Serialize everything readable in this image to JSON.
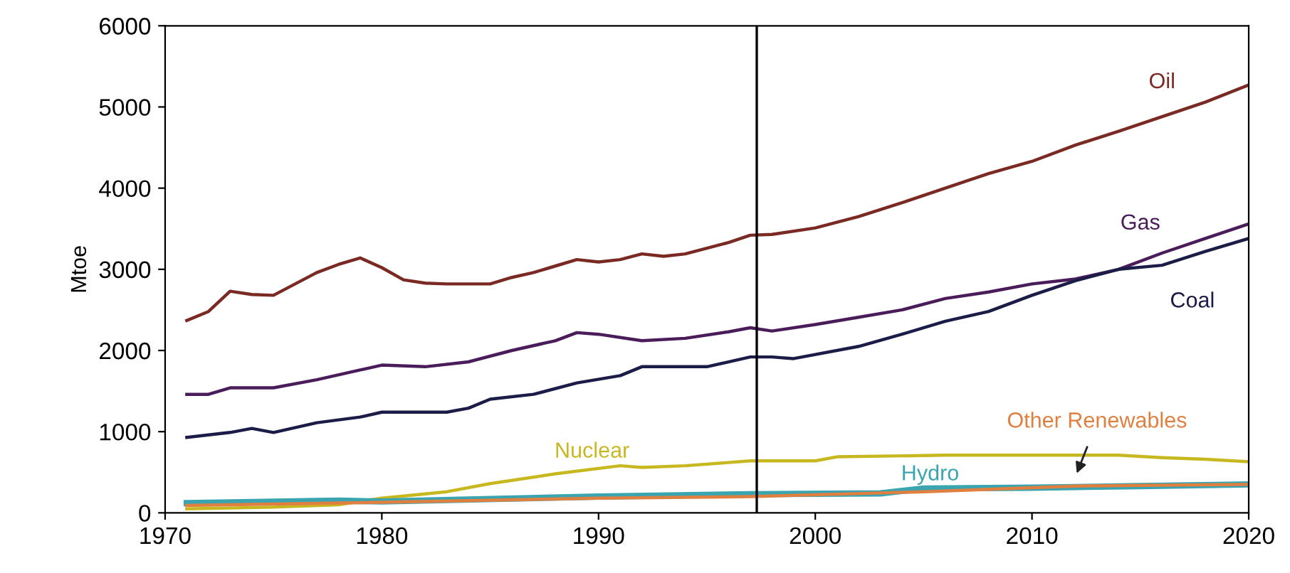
{
  "chart_data": {
    "type": "line",
    "ylabel": "Mtoe",
    "xlim": [
      1970,
      2020
    ],
    "xticks": [
      1970,
      1980,
      1990,
      2000,
      2010,
      2020
    ],
    "ylim": [
      0,
      6000
    ],
    "yticks": [
      0,
      1000,
      2000,
      3000,
      4000,
      5000,
      6000
    ],
    "grid": false,
    "legend": false,
    "ref_lines": [
      {
        "axis": "x",
        "value": 1997.3,
        "color": "#000000"
      }
    ],
    "series": [
      {
        "name": "Oil",
        "color": "#7a2a22",
        "x": [
          1971,
          1972,
          1973,
          1974,
          1975,
          1976,
          1977,
          1978,
          1979,
          1980,
          1981,
          1982,
          1983,
          1984,
          1985,
          1986,
          1987,
          1988,
          1989,
          1990,
          1991,
          1992,
          1993,
          1994,
          1995,
          1996,
          1997,
          1998,
          2000,
          2002,
          2004,
          2006,
          2008,
          2010,
          2012,
          2014,
          2016,
          2018,
          2020
        ],
        "values": [
          2370,
          2480,
          2730,
          2690,
          2680,
          2820,
          2960,
          3060,
          3140,
          3020,
          2870,
          2830,
          2820,
          2820,
          2820,
          2900,
          2960,
          3040,
          3120,
          3090,
          3120,
          3190,
          3160,
          3190,
          3260,
          3330,
          3420,
          3430,
          3510,
          3650,
          3820,
          4000,
          4180,
          4330,
          4530,
          4700,
          4880,
          5060,
          5270
        ]
      },
      {
        "name": "Gas",
        "color": "#4a1d5a",
        "x": [
          1971,
          1972,
          1973,
          1975,
          1977,
          1979,
          1980,
          1982,
          1984,
          1986,
          1988,
          1989,
          1990,
          1992,
          1994,
          1996,
          1997,
          1998,
          2000,
          2002,
          2004,
          2006,
          2008,
          2010,
          2012,
          2014,
          2016,
          2018,
          2020
        ],
        "values": [
          1460,
          1460,
          1540,
          1540,
          1640,
          1760,
          1820,
          1800,
          1860,
          2000,
          2120,
          2220,
          2200,
          2120,
          2150,
          2230,
          2280,
          2240,
          2320,
          2410,
          2500,
          2640,
          2720,
          2820,
          2880,
          3000,
          3200,
          3380,
          3560
        ]
      },
      {
        "name": "Coal",
        "color": "#1c1c48",
        "x": [
          1971,
          1973,
          1974,
          1975,
          1977,
          1979,
          1980,
          1982,
          1983,
          1984,
          1985,
          1987,
          1989,
          1991,
          1992,
          1995,
          1997,
          1998,
          1999,
          2002,
          2004,
          2006,
          2008,
          2010,
          2012,
          2014,
          2016,
          2018,
          2020
        ],
        "values": [
          930,
          990,
          1040,
          990,
          1110,
          1180,
          1240,
          1240,
          1240,
          1290,
          1400,
          1460,
          1600,
          1690,
          1800,
          1800,
          1920,
          1920,
          1900,
          2050,
          2200,
          2360,
          2480,
          2680,
          2860,
          3000,
          3050,
          3220,
          3380
        ]
      },
      {
        "name": "Nuclear",
        "color": "#c8b820",
        "x": [
          1971,
          1975,
          1978,
          1980,
          1983,
          1985,
          1988,
          1991,
          1992,
          1994,
          1997,
          2000,
          2001,
          2006,
          2014,
          2016,
          2018,
          2020
        ],
        "values": [
          50,
          70,
          100,
          180,
          260,
          360,
          480,
          580,
          560,
          580,
          640,
          640,
          690,
          710,
          710,
          680,
          660,
          630
        ]
      },
      {
        "name": "Hydro",
        "color": "#3aa5b0",
        "x": [
          1971,
          1978,
          1980,
          1990,
          1997,
          2003,
          2005,
          2010,
          2015,
          2020
        ],
        "values": [
          120,
          150,
          140,
          200,
          230,
          240,
          300,
          310,
          330,
          350
        ]
      },
      {
        "name": "Other Renewables",
        "color": "#e08040",
        "x": [
          1971,
          1980,
          1990,
          1997,
          2005,
          2012,
          2020
        ],
        "values": [
          90,
          130,
          180,
          200,
          260,
          330,
          350
        ]
      }
    ]
  }
}
